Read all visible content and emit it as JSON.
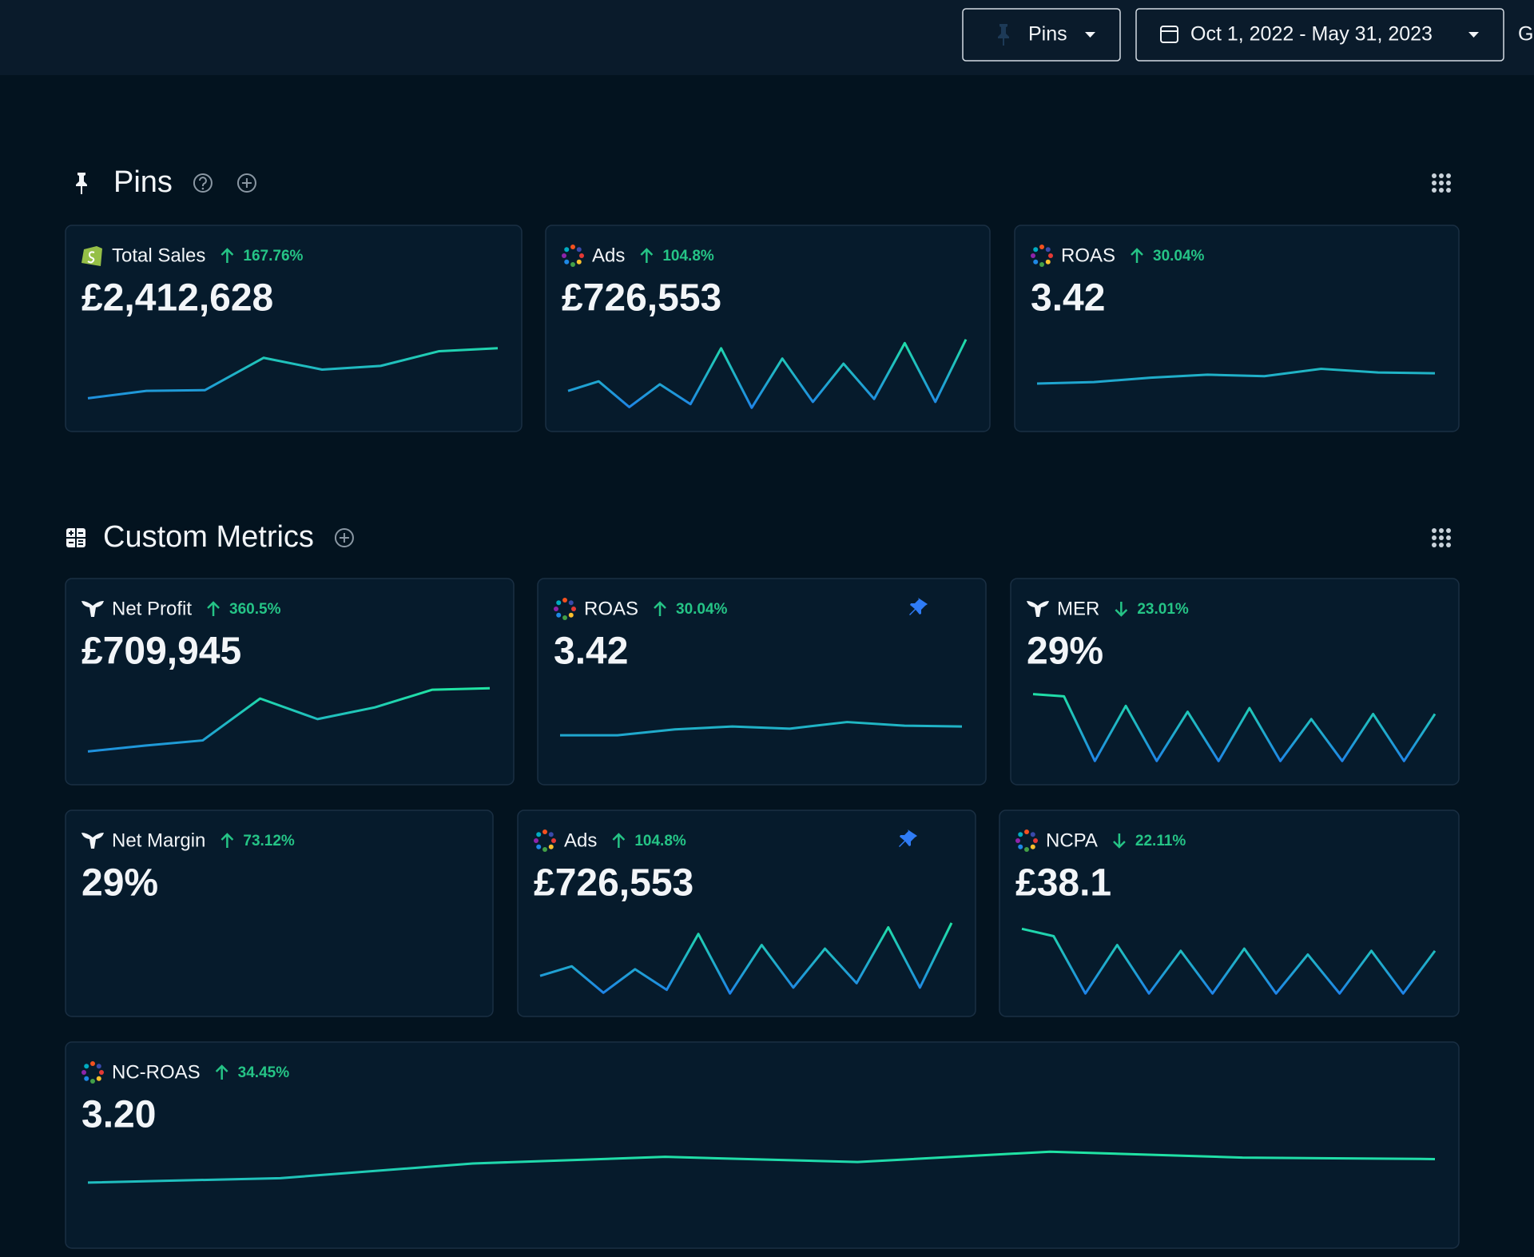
{
  "toolbar": {
    "pins_button": "Pins",
    "date_range": "Oct 1, 2022 - May 31, 2023",
    "overflow_text": "G"
  },
  "sections": [
    {
      "title": "Pins",
      "cards": [
        {
          "icon": "shopify",
          "name": "Total Sales",
          "direction": "up",
          "change": "167.76%",
          "value": "£2,412,628",
          "sparkline": [
            17,
            27,
            28,
            72,
            56,
            61,
            81,
            85
          ]
        },
        {
          "icon": "dots",
          "name": "Ads",
          "direction": "up",
          "change": "104.8%",
          "value": "£726,553",
          "sparkline": [
            27,
            40,
            5,
            36,
            9,
            85,
            4,
            71,
            12,
            64,
            16,
            92,
            12,
            97
          ]
        },
        {
          "icon": "dots",
          "name": "ROAS",
          "direction": "up",
          "change": "30.04%",
          "value": "3.42",
          "sparkline": [
            37,
            39,
            45,
            49,
            47,
            57,
            52,
            51
          ]
        }
      ]
    },
    {
      "title": "Custom Metrics",
      "cards": [
        {
          "icon": "tail",
          "name": "Net Profit",
          "direction": "up",
          "change": "360.5%",
          "value": "£709,945",
          "sparkline": [
            17,
            25,
            32,
            89,
            61,
            77,
            101,
            103
          ]
        },
        {
          "icon": "dots",
          "name": "ROAS",
          "direction": "up",
          "change": "30.04%",
          "value": "3.42",
          "pinned": true,
          "sparkline": [
            39,
            39,
            47,
            51,
            48,
            57,
            52,
            51
          ]
        },
        {
          "icon": "tail",
          "name": "MER",
          "direction": "down",
          "change": "23.01%",
          "value": "29%",
          "sparkline": [
            95,
            92,
            4,
            79,
            4,
            71,
            4,
            76,
            4,
            61,
            4,
            68,
            4,
            68
          ]
        },
        {
          "icon": "tail",
          "name": "Net Margin",
          "direction": "up",
          "change": "73.12%",
          "value": "29%"
        },
        {
          "icon": "dots",
          "name": "Ads",
          "direction": "up",
          "change": "104.8%",
          "value": "£726,553",
          "pinned": true,
          "sparkline": [
            27,
            40,
            4,
            36,
            8,
            84,
            3,
            69,
            11,
            64,
            17,
            93,
            11,
            99
          ]
        },
        {
          "icon": "dots",
          "name": "NCPA",
          "direction": "down",
          "change": "22.11%",
          "value": "£38.1",
          "sparkline": [
            91,
            81,
            3,
            69,
            3,
            61,
            3,
            64,
            3,
            56,
            3,
            61,
            3,
            61
          ]
        },
        {
          "icon": "dots",
          "name": "NC-ROAS",
          "direction": "up",
          "change": "34.45%",
          "value": "3.20",
          "sparkline": [
            61,
            67,
            87,
            96,
            89,
            103,
            95,
            93
          ]
        }
      ]
    }
  ]
}
